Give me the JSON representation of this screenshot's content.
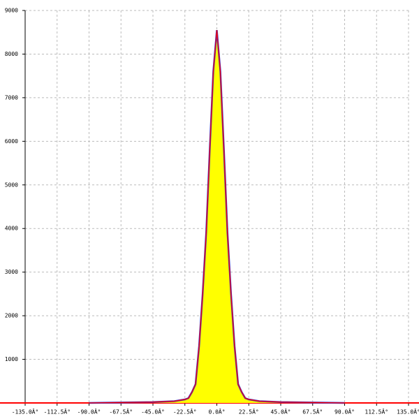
{
  "chart_data": {
    "type": "area",
    "x": [
      -90,
      -67.5,
      -45,
      -30,
      -22.5,
      -20,
      -17.5,
      -15,
      -12.5,
      -10,
      -7.5,
      -5,
      -2.5,
      0,
      2.5,
      5,
      7.5,
      10,
      12.5,
      15,
      17.5,
      20,
      22.5,
      30,
      45,
      67.5,
      90
    ],
    "values": [
      0,
      10,
      20,
      40,
      80,
      110,
      250,
      430,
      1300,
      2500,
      3900,
      5800,
      7600,
      8550,
      7600,
      5800,
      3900,
      2500,
      1300,
      430,
      250,
      110,
      80,
      40,
      20,
      10,
      0
    ],
    "fill_color": "#ffff00",
    "line_color": "#ff0000",
    "outline_color": "#3333cc",
    "xlim": [
      -135,
      135
    ],
    "xticks": [
      {
        "value": -135,
        "label": "-135.0Â°"
      },
      {
        "value": -112.5,
        "label": "-112.5Â°"
      },
      {
        "value": -90,
        "label": "-90.0Â°"
      },
      {
        "value": -67.5,
        "label": "-67.5Â°"
      },
      {
        "value": -45,
        "label": "-45.0Â°"
      },
      {
        "value": -22.5,
        "label": "-22.5Â°"
      },
      {
        "value": 0,
        "label": "0.0Â°"
      },
      {
        "value": 22.5,
        "label": "22.5Â°"
      },
      {
        "value": 45,
        "label": "45.0Â°"
      },
      {
        "value": 67.5,
        "label": "67.5Â°"
      },
      {
        "value": 90,
        "label": "90.0Â°"
      },
      {
        "value": 112.5,
        "label": "112.5Â°"
      },
      {
        "value": 135,
        "label": "135.0Â°"
      }
    ],
    "ylim": [
      0,
      9000
    ],
    "yticks": [
      1000,
      2000,
      3000,
      4000,
      5000,
      6000,
      7000,
      8000,
      9000
    ],
    "grid": true
  }
}
